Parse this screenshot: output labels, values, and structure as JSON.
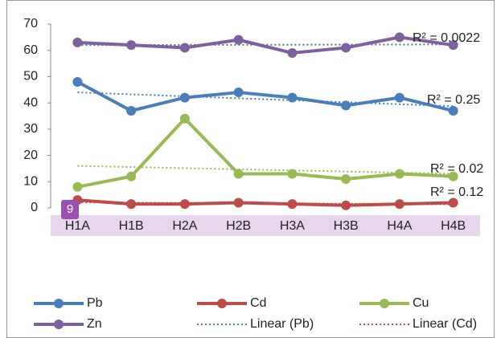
{
  "chart_data": {
    "type": "line",
    "categories": [
      "H1A",
      "H1B",
      "H2A",
      "H2B",
      "H3A",
      "H3B",
      "H4A",
      "H4B"
    ],
    "series": [
      {
        "name": "Pb",
        "color": "#4a7ebb",
        "values": [
          48,
          37,
          42,
          44,
          42,
          39,
          42,
          37
        ],
        "trend": {
          "name": "Linear (Pb)",
          "color": "#4a7ebb",
          "label": "R² = 0.25"
        }
      },
      {
        "name": "Cd",
        "color": "#be4b48",
        "values": [
          3,
          1.5,
          1.5,
          2,
          1.5,
          1,
          1.5,
          2
        ],
        "trend": {
          "name": "Linear (Cd)",
          "color": "#be4b48",
          "label": "R² = 0.12"
        }
      },
      {
        "name": "Cu",
        "color": "#98b954",
        "values": [
          8,
          12,
          34,
          13,
          13,
          11,
          13,
          12
        ],
        "trend": {
          "color": "#98b954",
          "label": "R² = 0.02"
        }
      },
      {
        "name": "Zn",
        "color": "#7d60a0",
        "values": [
          63,
          62,
          61,
          64,
          59,
          61,
          65,
          62
        ],
        "trend": {
          "color": "#5a6e8c",
          "label": "R² = 0.0022"
        }
      }
    ],
    "ylim": [
      0,
      70
    ],
    "yticks": [
      0,
      10,
      20,
      30,
      40,
      50,
      60,
      70
    ],
    "grid": false,
    "badge": "9",
    "category_band_color": "#e8d5ee",
    "badge_color": "#9b4fb0"
  }
}
